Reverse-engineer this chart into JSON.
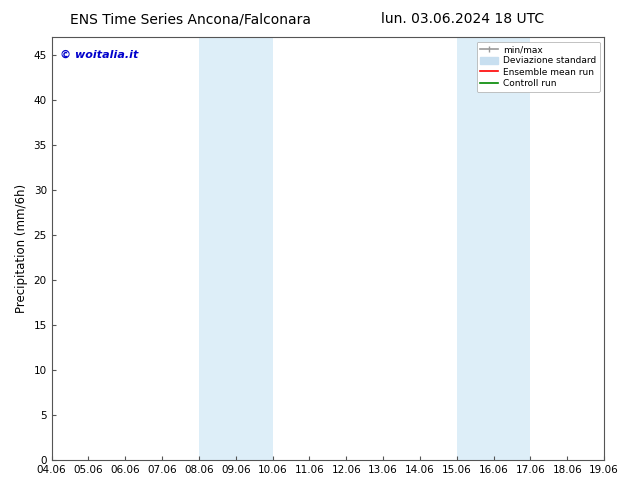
{
  "title_left": "ENS Time Series Ancona/Falconara",
  "title_right": "lun. 03.06.2024 18 UTC",
  "ylabel": "Precipitation (mm/6h)",
  "xlabel_ticks": [
    "04.06",
    "05.06",
    "06.06",
    "07.06",
    "08.06",
    "09.06",
    "10.06",
    "11.06",
    "12.06",
    "13.06",
    "14.06",
    "15.06",
    "16.06",
    "17.06",
    "18.06",
    "19.06"
  ],
  "xlim": [
    0,
    15
  ],
  "ylim": [
    0,
    47
  ],
  "yticks": [
    0,
    5,
    10,
    15,
    20,
    25,
    30,
    35,
    40,
    45
  ],
  "shaded_regions": [
    {
      "xstart": 4.0,
      "xend": 6.0,
      "color": "#ddeef8"
    },
    {
      "xstart": 11.0,
      "xend": 13.0,
      "color": "#ddeef8"
    }
  ],
  "watermark_text": "© woitalia.it",
  "watermark_color": "#0000cc",
  "background_color": "#ffffff",
  "legend_items": [
    {
      "label": "min/max",
      "color": "#999999",
      "lw": 1.2
    },
    {
      "label": "Deviazione standard",
      "color": "#c8dff0",
      "lw": 7
    },
    {
      "label": "Ensemble mean run",
      "color": "#ff0000",
      "lw": 1.2
    },
    {
      "label": "Controll run",
      "color": "#008800",
      "lw": 1.2
    }
  ],
  "title_fontsize": 10,
  "tick_fontsize": 7.5,
  "ylabel_fontsize": 8.5,
  "watermark_fontsize": 8
}
